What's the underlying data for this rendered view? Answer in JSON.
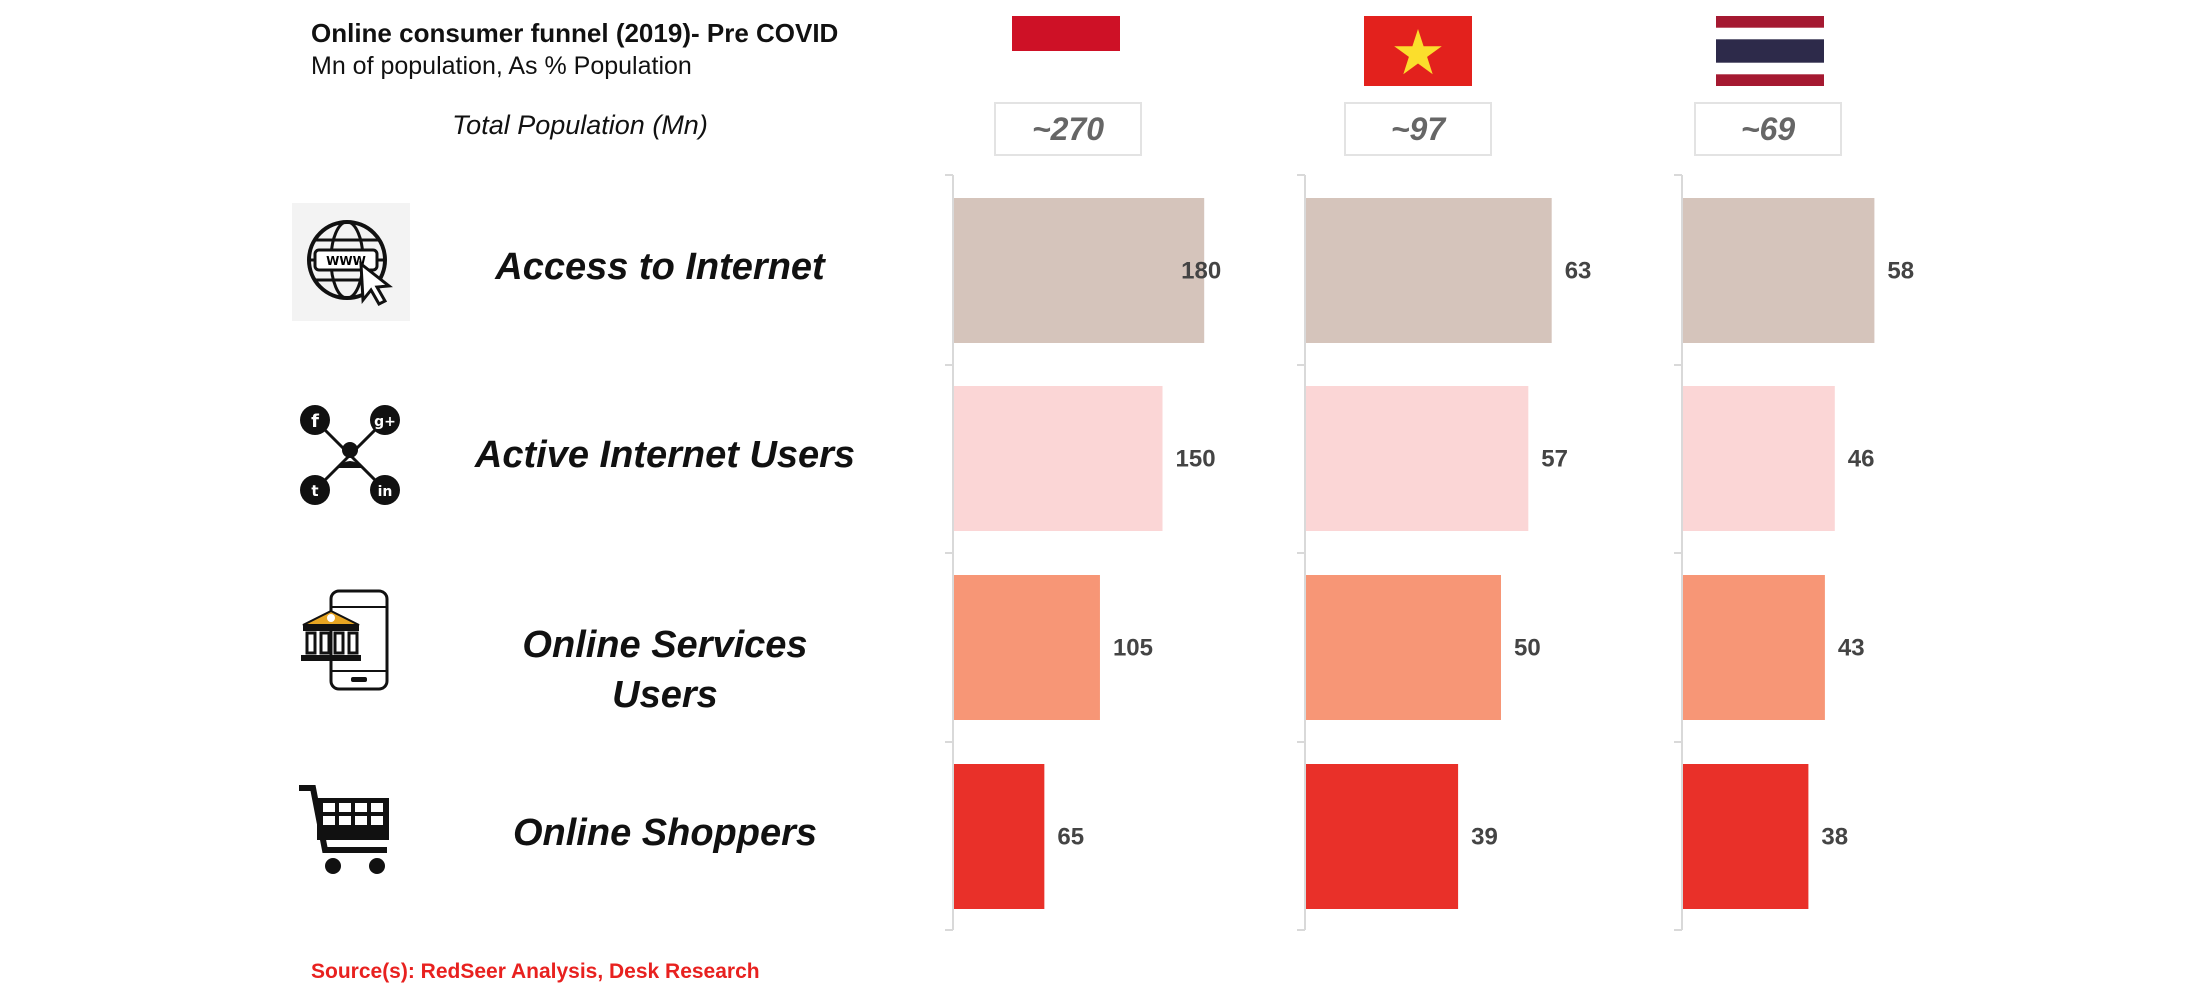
{
  "header": {
    "title": "Online consumer funnel (2019)- Pre COVID",
    "subtitle": "Mn of population, As % Population",
    "total_population_label": "Total Population (Mn)"
  },
  "countries": [
    {
      "flag": "indonesia-flag",
      "population": "~270"
    },
    {
      "flag": "vietnam-flag",
      "population": "~97"
    },
    {
      "flag": "thailand-flag",
      "population": "~69"
    }
  ],
  "categories": [
    {
      "label": "Access to Internet",
      "icon": "www-globe-icon"
    },
    {
      "label": "Active Internet Users",
      "icon": "social-network-icon"
    },
    {
      "label": "Online Services Users",
      "icon": "mobile-bank-icon"
    },
    {
      "label": "Online Shoppers",
      "icon": "shopping-cart-icon"
    }
  ],
  "source": "Source(s): RedSeer Analysis, Desk Research",
  "colors": {
    "access": "#d5c4bb",
    "active": "#fbd6d6",
    "services": "#f79676",
    "shoppers": "#e93029",
    "source_text": "#e8211f"
  },
  "chart_data": {
    "type": "bar",
    "orientation": "horizontal",
    "categories": [
      "Access to Internet",
      "Active Internet Users",
      "Online Services Users",
      "Online Shoppers"
    ],
    "series": [
      {
        "values": [
          180,
          150,
          105,
          65
        ]
      },
      {
        "values": [
          63,
          57,
          50,
          39
        ]
      },
      {
        "values": [
          58,
          46,
          43,
          38
        ]
      }
    ],
    "title": "Online consumer funnel (2019)- Pre COVID",
    "subtitle": "Mn of population, As % Population",
    "units": "Mn",
    "grid": false,
    "legend": "none"
  }
}
